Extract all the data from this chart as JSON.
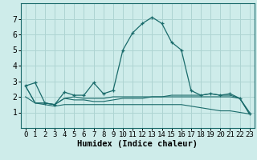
{
  "xlabel": "Humidex (Indice chaleur)",
  "background_color": "#ceecea",
  "grid_color": "#aed4d2",
  "line_color": "#1a6b6b",
  "x_values": [
    0,
    1,
    2,
    3,
    4,
    5,
    6,
    7,
    8,
    9,
    10,
    11,
    12,
    13,
    14,
    15,
    16,
    17,
    18,
    19,
    20,
    21,
    22,
    23
  ],
  "line1": [
    2.7,
    2.9,
    1.6,
    1.5,
    2.3,
    2.1,
    2.1,
    2.9,
    2.2,
    2.4,
    5.0,
    6.1,
    6.7,
    7.1,
    6.7,
    5.5,
    5.0,
    2.4,
    2.1,
    2.2,
    2.1,
    2.2,
    1.9,
    0.9
  ],
  "line2": [
    2.7,
    1.6,
    1.6,
    1.5,
    1.9,
    1.8,
    1.8,
    1.7,
    1.7,
    1.8,
    1.9,
    1.9,
    1.9,
    2.0,
    2.0,
    2.0,
    2.0,
    2.0,
    2.0,
    2.0,
    2.0,
    2.0,
    1.9,
    0.9
  ],
  "line3": [
    2.0,
    1.6,
    1.5,
    1.4,
    1.5,
    1.5,
    1.5,
    1.5,
    1.5,
    1.5,
    1.5,
    1.5,
    1.5,
    1.5,
    1.5,
    1.5,
    1.5,
    1.4,
    1.3,
    1.2,
    1.1,
    1.1,
    1.0,
    0.9
  ],
  "line4": [
    2.7,
    1.6,
    1.6,
    1.5,
    1.9,
    2.0,
    1.9,
    1.9,
    1.9,
    2.0,
    2.0,
    2.0,
    2.0,
    2.0,
    2.0,
    2.1,
    2.1,
    2.1,
    2.1,
    2.2,
    2.1,
    2.1,
    1.9,
    1.0
  ],
  "ylim": [
    0,
    8
  ],
  "xlim": [
    -0.5,
    23.5
  ],
  "yticks": [
    1,
    2,
    3,
    4,
    5,
    6,
    7
  ],
  "xticks": [
    0,
    1,
    2,
    3,
    4,
    5,
    6,
    7,
    8,
    9,
    10,
    11,
    12,
    13,
    14,
    15,
    16,
    17,
    18,
    19,
    20,
    21,
    22,
    23
  ],
  "tick_fontsize": 6.5,
  "xlabel_fontsize": 7.5,
  "ytick_fontsize": 7.0
}
